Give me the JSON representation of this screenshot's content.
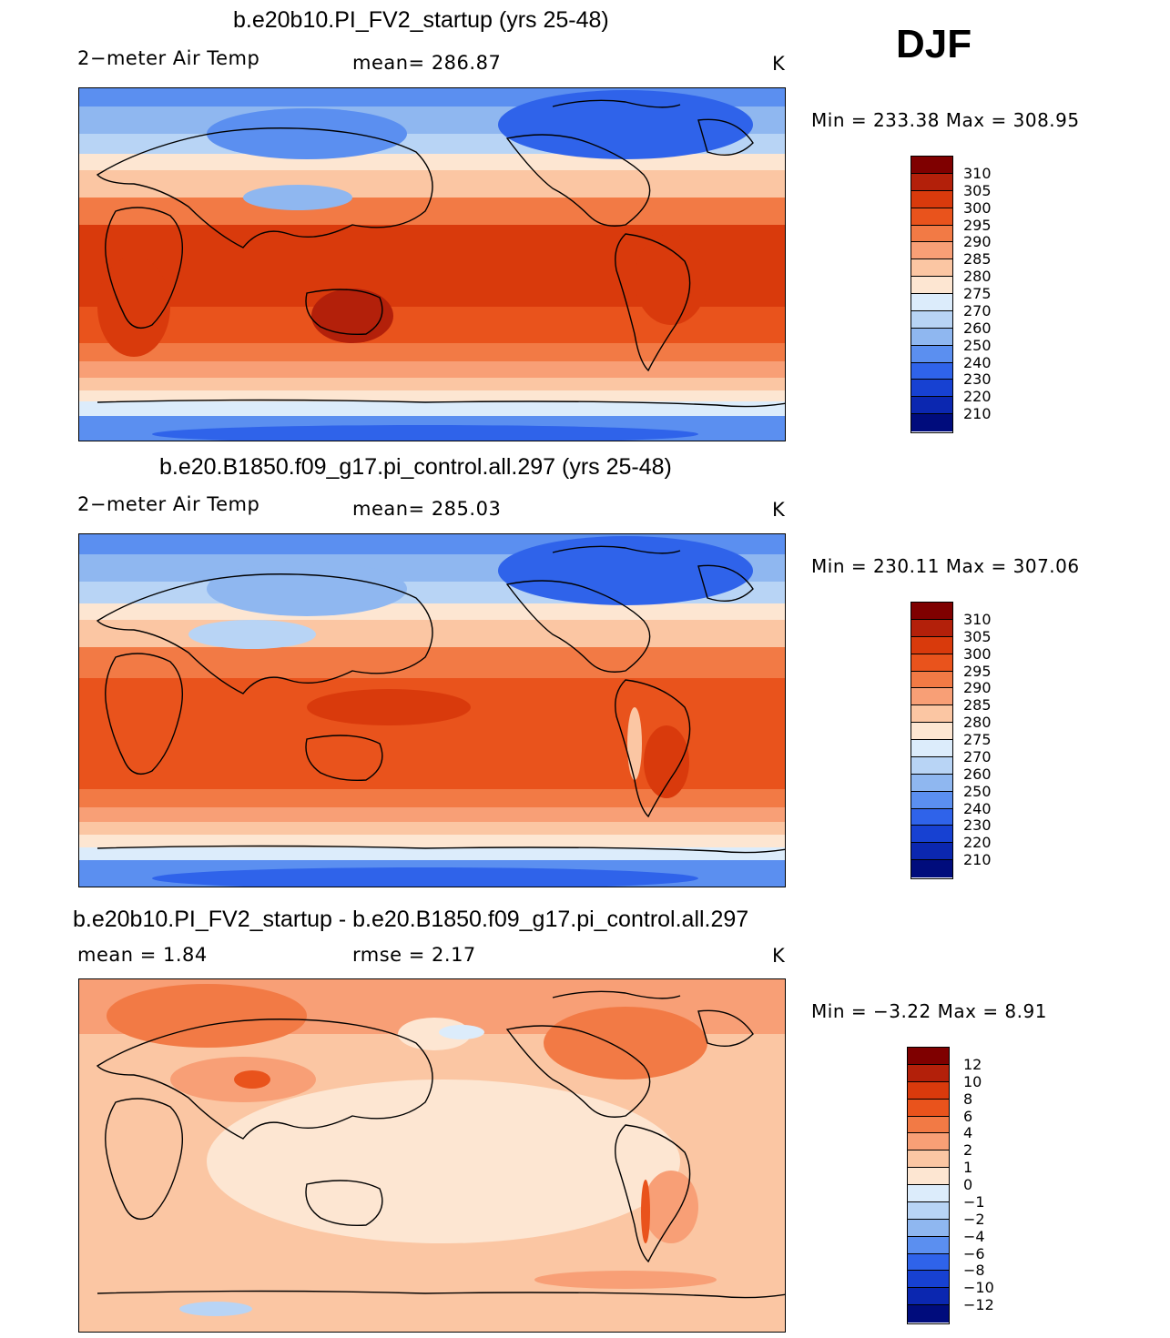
{
  "season": "DJF",
  "panels": [
    {
      "title": "b.e20b10.PI_FV2_startup (yrs 25-48)",
      "left_label": "2−meter Air Temp",
      "center_label": "mean=  286.87",
      "right_label": "K",
      "minmax": "Min  =  233.38  Max  =  308.95",
      "colorbar": {
        "labels": [
          "310",
          "305",
          "300",
          "295",
          "290",
          "285",
          "280",
          "275",
          "270",
          "260",
          "250",
          "240",
          "230",
          "220",
          "210"
        ],
        "colors": [
          "#7f0000",
          "#b3200a",
          "#d93a0c",
          "#e9531c",
          "#f27a45",
          "#f89f76",
          "#fbc6a3",
          "#fde6d2",
          "#dcecfb",
          "#b8d4f5",
          "#8fb7f0",
          "#5b8ff0",
          "#2f63ea",
          "#1741d2",
          "#0b27b0",
          "#000c7c"
        ]
      }
    },
    {
      "title": "b.e20.B1850.f09_g17.pi_control.all.297 (yrs 25-48)",
      "left_label": "2−meter Air Temp",
      "center_label": "mean=  285.03",
      "right_label": "K",
      "minmax": "Min  =  230.11  Max  =  307.06",
      "colorbar": {
        "labels": [
          "310",
          "305",
          "300",
          "295",
          "290",
          "285",
          "280",
          "275",
          "270",
          "260",
          "250",
          "240",
          "230",
          "220",
          "210"
        ],
        "colors": [
          "#7f0000",
          "#b3200a",
          "#d93a0c",
          "#e9531c",
          "#f27a45",
          "#f89f76",
          "#fbc6a3",
          "#fde6d2",
          "#dcecfb",
          "#b8d4f5",
          "#8fb7f0",
          "#5b8ff0",
          "#2f63ea",
          "#1741d2",
          "#0b27b0",
          "#000c7c"
        ]
      }
    },
    {
      "title": "b.e20b10.PI_FV2_startup - b.e20.B1850.f09_g17.pi_control.all.297",
      "left_label": "mean =      1.84",
      "center_label": "rmse =     2.17",
      "right_label": "K",
      "minmax": "Min  =    −3.22  Max  =       8.91",
      "colorbar": {
        "labels": [
          "12",
          "10",
          "8",
          "6",
          "4",
          "2",
          "1",
          "0",
          "−1",
          "−2",
          "−4",
          "−6",
          "−8",
          "−10",
          "−12"
        ],
        "colors": [
          "#7f0000",
          "#b3200a",
          "#d93a0c",
          "#e9531c",
          "#f27a45",
          "#f89f76",
          "#fbc6a3",
          "#fde6d2",
          "#dcecfb",
          "#b8d4f5",
          "#8fb7f0",
          "#5b8ff0",
          "#2f63ea",
          "#1741d2",
          "#0b27b0",
          "#000c7c"
        ]
      }
    }
  ]
}
